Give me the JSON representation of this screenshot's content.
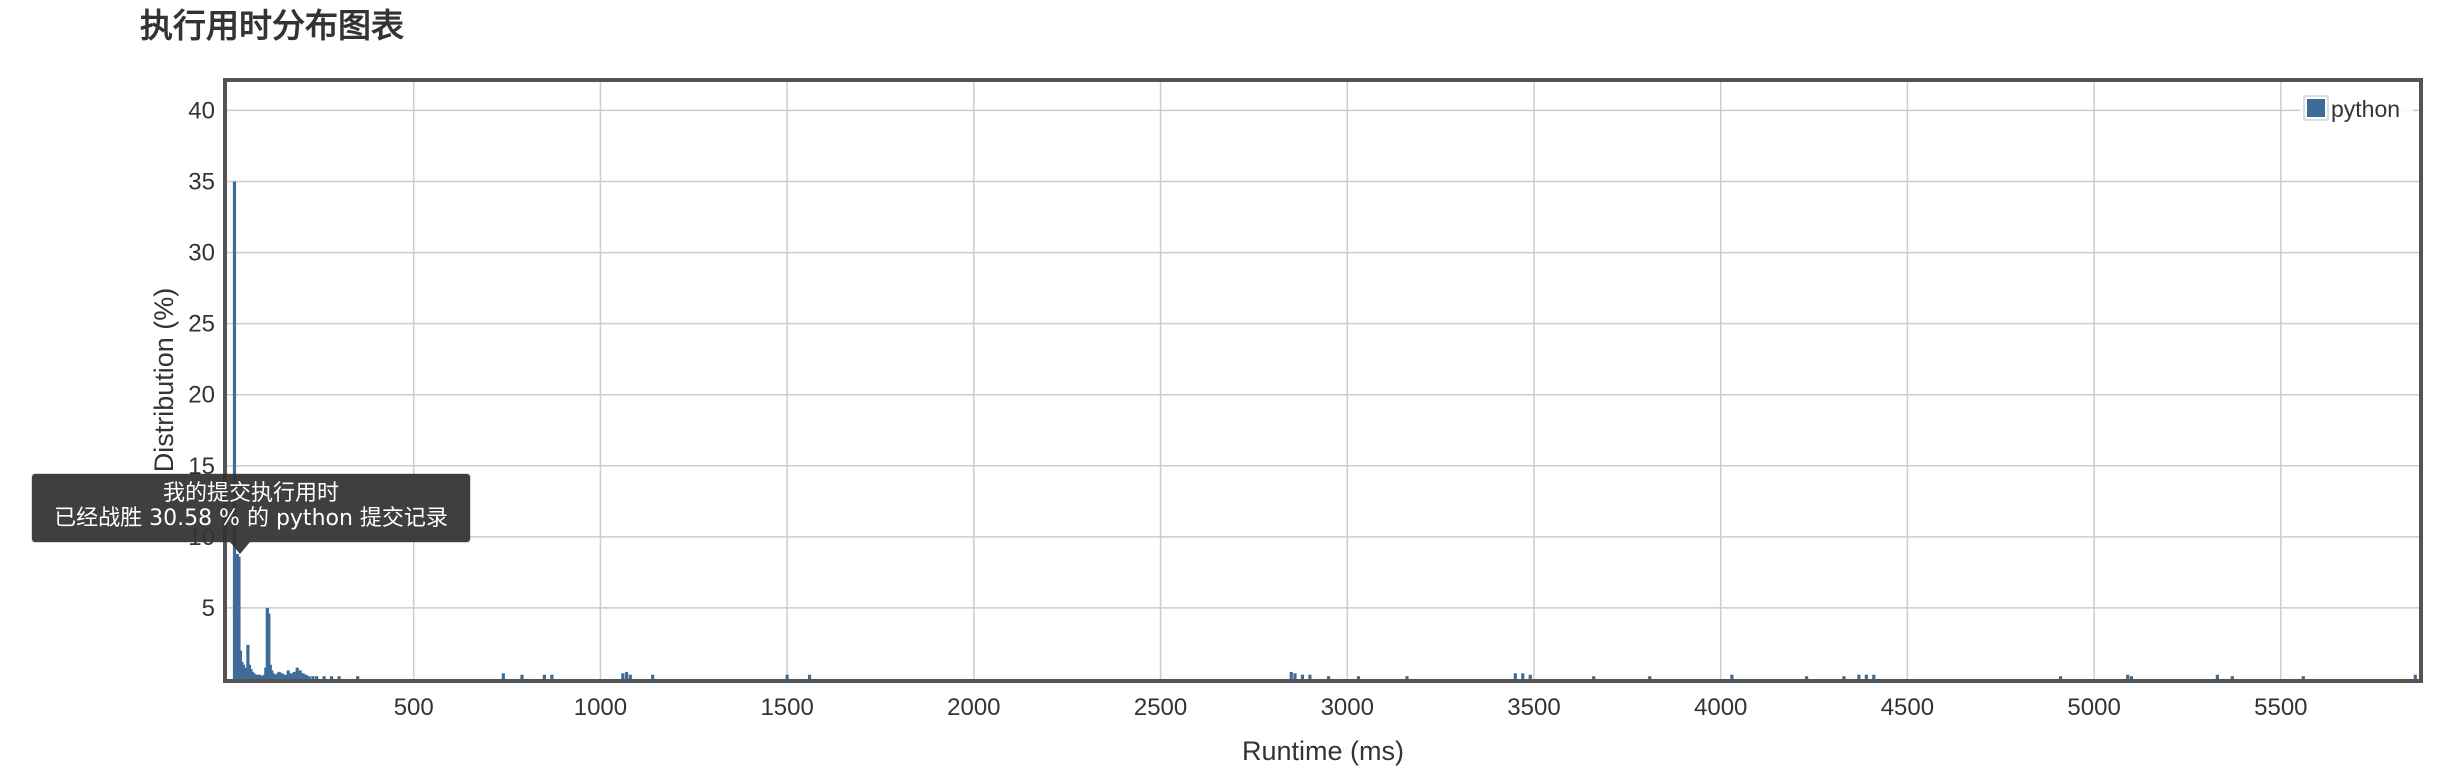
{
  "page": {
    "title": "执行用时分布图表"
  },
  "chart_data": {
    "type": "bar",
    "title": "执行用时分布图表",
    "xlabel": "Runtime (ms)",
    "ylabel": "Distribution (%)",
    "xlim": [
      0,
      5870
    ],
    "ylim": [
      0,
      42
    ],
    "x_ticks": [
      500,
      1000,
      1500,
      2000,
      2500,
      3000,
      3500,
      4000,
      4500,
      5000,
      5500
    ],
    "y_ticks": [
      5,
      10,
      15,
      20,
      25,
      30,
      35,
      40
    ],
    "grid": true,
    "legend": {
      "position": "top-right",
      "entries": [
        "python"
      ]
    },
    "series": [
      {
        "name": "python",
        "color": "#3e6b97",
        "x": [
          20,
          28,
          32,
          36,
          40,
          44,
          48,
          52,
          56,
          60,
          64,
          68,
          72,
          76,
          80,
          84,
          88,
          92,
          96,
          100,
          104,
          108,
          112,
          116,
          120,
          124,
          128,
          132,
          136,
          140,
          148,
          156,
          164,
          172,
          180,
          188,
          196,
          204,
          212,
          220,
          230,
          240,
          260,
          280,
          300,
          350,
          740,
          790,
          850,
          870,
          1060,
          1070,
          1080,
          1140,
          1500,
          1560,
          2850,
          2860,
          2880,
          2900,
          2950,
          3030,
          3160,
          3450,
          3470,
          3490,
          3660,
          3810,
          4030,
          4230,
          4330,
          4370,
          4390,
          4410,
          4910,
          5090,
          5100,
          5330,
          5370,
          5560,
          5860
        ],
        "values": [
          35.0,
          8.8,
          8.6,
          2.0,
          1.2,
          1.0,
          0.8,
          0.5,
          2.4,
          1.0,
          0.7,
          0.5,
          0.4,
          0.3,
          0.3,
          0.2,
          0.3,
          0.2,
          0.2,
          0.3,
          0.8,
          5.0,
          4.6,
          1.0,
          0.6,
          0.4,
          0.3,
          0.3,
          0.4,
          0.5,
          0.4,
          0.3,
          0.6,
          0.4,
          0.5,
          0.8,
          0.6,
          0.4,
          0.3,
          0.2,
          0.2,
          0.2,
          0.2,
          0.2,
          0.2,
          0.2,
          0.4,
          0.3,
          0.3,
          0.3,
          0.4,
          0.5,
          0.3,
          0.3,
          0.3,
          0.3,
          0.5,
          0.4,
          0.3,
          0.3,
          0.2,
          0.2,
          0.2,
          0.4,
          0.4,
          0.3,
          0.2,
          0.2,
          0.3,
          0.2,
          0.2,
          0.3,
          0.3,
          0.3,
          0.2,
          0.3,
          0.2,
          0.3,
          0.2,
          0.2,
          0.3
        ]
      }
    ],
    "tooltip": {
      "line1": "我的提交执行用时",
      "line2": "已经战胜 30.58 % 的 python 提交记录",
      "x": 35
    }
  }
}
